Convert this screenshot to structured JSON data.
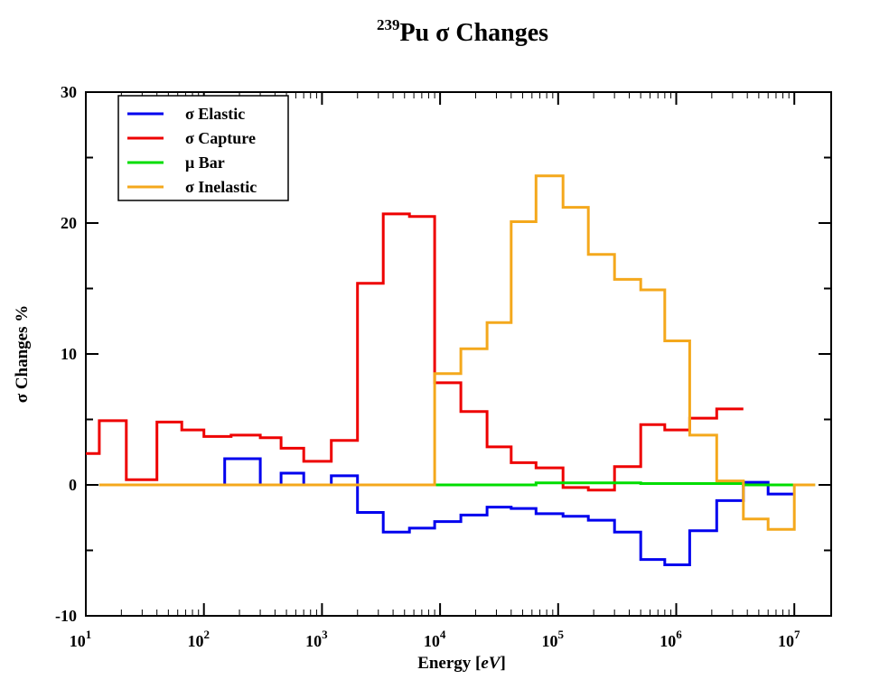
{
  "chart_data": {
    "type": "line",
    "style": "step histogram",
    "title_sup": "239",
    "title_main": "Pu σ  Changes",
    "xlabel": "Energy [",
    "xlabel_unit": "eV",
    "xlabel_end": "]",
    "ylabel": "σ Changes %",
    "xscale": "log",
    "xlim": [
      10,
      20000000
    ],
    "ylim": [
      -10,
      30
    ],
    "y_ticks": [
      "30",
      "20",
      "10",
      "0",
      "-10"
    ],
    "x_ticks": [
      {
        "base": "10",
        "exp": "1"
      },
      {
        "base": "10",
        "exp": "2"
      },
      {
        "base": "10",
        "exp": "3"
      },
      {
        "base": "10",
        "exp": "4"
      },
      {
        "base": "10",
        "exp": "5"
      },
      {
        "base": "10",
        "exp": "6"
      },
      {
        "base": "10",
        "exp": "7"
      }
    ],
    "grid": false,
    "legend_position": "top-left",
    "series": [
      {
        "name": "σ  Elastic",
        "color": "#0000ee",
        "bins": [
          [
            13,
            150,
            0
          ],
          [
            150,
            300,
            2
          ],
          [
            300,
            450,
            0
          ],
          [
            450,
            700,
            0.9
          ],
          [
            700,
            1200,
            0
          ],
          [
            1200,
            2000,
            0.7
          ],
          [
            2000,
            3300,
            -2.1
          ],
          [
            3300,
            5500,
            -3.6
          ],
          [
            5500,
            9000,
            -3.3
          ],
          [
            9000,
            15000,
            -2.8
          ],
          [
            15000,
            25000,
            -2.3
          ],
          [
            25000,
            40000,
            -1.7
          ],
          [
            40000,
            65000,
            -1.8
          ],
          [
            65000,
            110000,
            -2.2
          ],
          [
            110000,
            180000,
            -2.4
          ],
          [
            180000,
            300000,
            -2.7
          ],
          [
            300000,
            500000,
            -3.6
          ],
          [
            500000,
            800000,
            -5.7
          ],
          [
            800000,
            1300000,
            -6.1
          ],
          [
            1300000,
            2200000,
            -3.5
          ],
          [
            2200000,
            3700000,
            -1.2
          ],
          [
            3700000,
            6000000,
            0.2
          ],
          [
            6000000,
            10000000,
            -0.7
          ]
        ]
      },
      {
        "name": "σ  Capture",
        "color": "#ee0000",
        "bins": [
          [
            10,
            13,
            2.4
          ],
          [
            13,
            22,
            4.9
          ],
          [
            22,
            40,
            0.4
          ],
          [
            40,
            65,
            4.8
          ],
          [
            65,
            100,
            4.2
          ],
          [
            100,
            170,
            3.7
          ],
          [
            170,
            300,
            3.8
          ],
          [
            300,
            450,
            3.6
          ],
          [
            450,
            700,
            2.8
          ],
          [
            700,
            1200,
            1.8
          ],
          [
            1200,
            2000,
            3.4
          ],
          [
            2000,
            3300,
            15.4
          ],
          [
            3300,
            5500,
            20.7
          ],
          [
            5500,
            9000,
            20.5
          ],
          [
            9000,
            15000,
            7.8
          ],
          [
            15000,
            25000,
            5.6
          ],
          [
            25000,
            40000,
            2.9
          ],
          [
            40000,
            65000,
            1.7
          ],
          [
            65000,
            110000,
            1.3
          ],
          [
            110000,
            180000,
            -0.2
          ],
          [
            180000,
            300000,
            -0.4
          ],
          [
            300000,
            500000,
            1.4
          ],
          [
            500000,
            800000,
            4.6
          ],
          [
            800000,
            1300000,
            4.2
          ],
          [
            1300000,
            2200000,
            5.1
          ],
          [
            2200000,
            3700000,
            5.8
          ]
        ]
      },
      {
        "name": "μ  Bar",
        "color": "#00dd00",
        "bins": [
          [
            13,
            65000,
            0
          ],
          [
            65000,
            500000,
            0.15
          ],
          [
            500000,
            3700000,
            0.1
          ],
          [
            3700000,
            15000000,
            0
          ]
        ]
      },
      {
        "name": "σ  Inelastic",
        "color": "#f4a81c",
        "bins": [
          [
            13,
            9000,
            0
          ],
          [
            9000,
            15000,
            8.5
          ],
          [
            15000,
            25000,
            10.4
          ],
          [
            25000,
            40000,
            12.4
          ],
          [
            40000,
            65000,
            20.1
          ],
          [
            65000,
            110000,
            23.6
          ],
          [
            110000,
            180000,
            21.2
          ],
          [
            180000,
            300000,
            17.6
          ],
          [
            300000,
            500000,
            15.7
          ],
          [
            500000,
            800000,
            14.9
          ],
          [
            800000,
            1300000,
            11.0
          ],
          [
            1300000,
            2200000,
            3.8
          ],
          [
            2200000,
            3700000,
            0.3
          ],
          [
            3700000,
            6000000,
            -2.6
          ],
          [
            6000000,
            10000000,
            -3.4
          ],
          [
            10000000,
            15000000,
            0
          ]
        ]
      }
    ]
  }
}
